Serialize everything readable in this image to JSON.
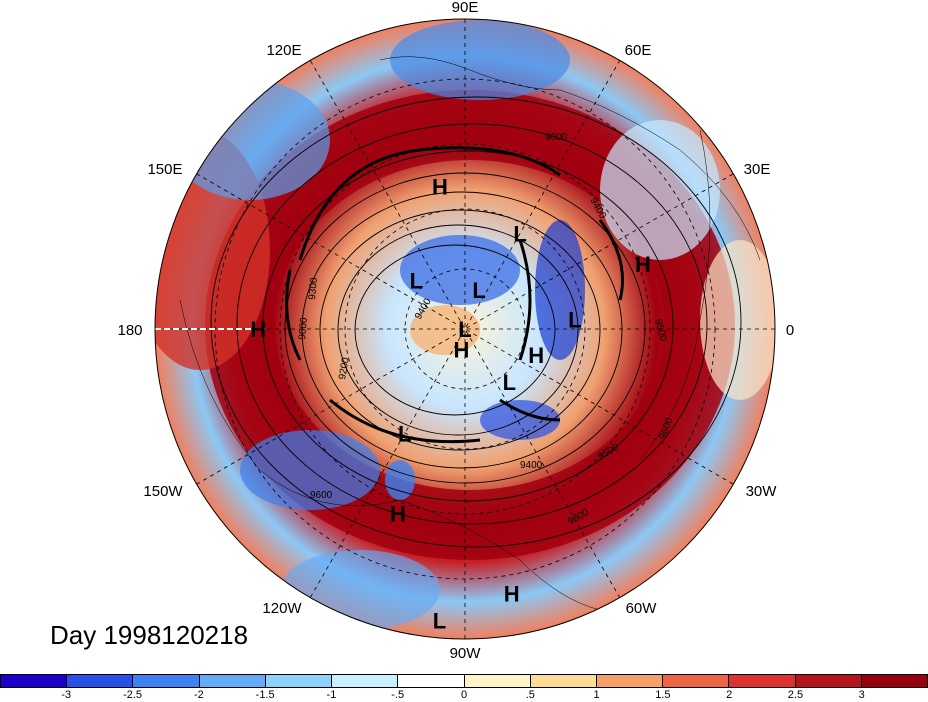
{
  "map": {
    "projection": "polar-stereographic-north",
    "longitude_labels": [
      "90E",
      "60E",
      "30E",
      "0",
      "30W",
      "60W",
      "90W",
      "120W",
      "150W",
      "180",
      "150E",
      "120E"
    ],
    "pressure_centers": [
      {
        "type": "H",
        "lon": 100,
        "lat": 48
      },
      {
        "type": "L",
        "lon": 135,
        "lat": 70
      },
      {
        "type": "L",
        "lon": 70,
        "lat": 78
      },
      {
        "type": "L",
        "lon": 60,
        "lat": 58
      },
      {
        "type": "H",
        "lon": 20,
        "lat": 35
      },
      {
        "type": "L",
        "lon": 5,
        "lat": 58
      },
      {
        "type": "H",
        "lon": -20,
        "lat": 68
      },
      {
        "type": "L",
        "lon": -50,
        "lat": 70
      },
      {
        "type": "H",
        "lon": -100,
        "lat": 84
      },
      {
        "type": "L",
        "lon": -5,
        "lat": 90
      },
      {
        "type": "H",
        "lon": 180,
        "lat": 30
      },
      {
        "type": "L",
        "lon": -120,
        "lat": 55
      },
      {
        "type": "H",
        "lon": -110,
        "lat": 33
      },
      {
        "type": "L",
        "lon": -95,
        "lat": 5
      },
      {
        "type": "H",
        "lon": -80,
        "lat": 12
      }
    ],
    "contour_labels": [
      "9600",
      "9400",
      "9200",
      "9300",
      "9500",
      "9600",
      "9400",
      "9500",
      "9600",
      "9600",
      "9400",
      "9600"
    ]
  },
  "date_label": "Day 1998120218",
  "colorbar": {
    "colors": [
      "#1a00c8",
      "#2850e6",
      "#3c82f0",
      "#64aaf5",
      "#8cd2fa",
      "#c8f0ff",
      "#ffffff",
      "#fff5c8",
      "#ffdc96",
      "#f5a064",
      "#f06446",
      "#dc3232",
      "#b4141e",
      "#96000f"
    ],
    "tick_labels": [
      "-3",
      "-2.5",
      "-2",
      "-1.5",
      "-1",
      "-.5",
      "0",
      ".5",
      "1",
      "1.5",
      "2",
      "2.5",
      "3"
    ]
  }
}
